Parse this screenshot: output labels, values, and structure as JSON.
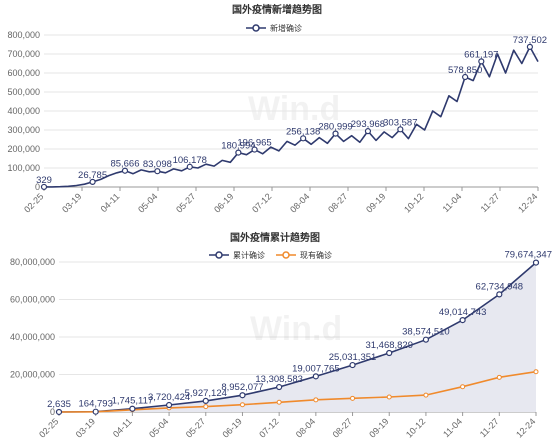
{
  "watermark": "Win.d",
  "colors": {
    "navy": "#2f3a6e",
    "orange": "#f08a2c",
    "area_fill": "#e7e8f0",
    "axis": "#999999",
    "grid": "#e6e6e6",
    "text": "#333333"
  },
  "chart_data": [
    {
      "type": "line",
      "title": "国外疫情新增趋势图",
      "legend": [
        "新增确诊"
      ],
      "legend_position": "top-center",
      "grid": true,
      "x_ticks": [
        "02-25",
        "03-19",
        "04-11",
        "05-04",
        "05-27",
        "06-19",
        "07-12",
        "08-04",
        "08-27",
        "09-19",
        "10-12",
        "11-04",
        "11-27",
        "12-24"
      ],
      "ylim": [
        0,
        800000
      ],
      "y_ticks": [
        "0",
        "100,000",
        "200,000",
        "300,000",
        "400,000",
        "500,000",
        "600,000",
        "700,000",
        "800,000"
      ],
      "series": [
        {
          "name": "新增确诊",
          "values": [
            329,
            600,
            1500,
            3500,
            8000,
            15000,
            26785,
            40000,
            60000,
            75000,
            85666,
            70000,
            90000,
            80000,
            83098,
            75000,
            95000,
            85000,
            106178,
            100000,
            120000,
            110000,
            140000,
            130000,
            180994,
            170000,
            196965,
            175000,
            210000,
            190000,
            240000,
            220000,
            256138,
            225000,
            260000,
            230000,
            280999,
            240000,
            270000,
            235000,
            293968,
            245000,
            290000,
            260000,
            303587,
            255000,
            330000,
            300000,
            400000,
            370000,
            480000,
            450000,
            578850,
            560000,
            661197,
            580000,
            700000,
            600000,
            720000,
            650000,
            737502,
            660000
          ],
          "labels": [
            {
              "i": 0,
              "text": "329"
            },
            {
              "i": 6,
              "text": "26,785"
            },
            {
              "i": 10,
              "text": "85,666"
            },
            {
              "i": 14,
              "text": "83,098"
            },
            {
              "i": 18,
              "text": "106,178"
            },
            {
              "i": 24,
              "text": "180,994"
            },
            {
              "i": 26,
              "text": "196,965"
            },
            {
              "i": 32,
              "text": "256,138"
            },
            {
              "i": 36,
              "text": "280,999"
            },
            {
              "i": 40,
              "text": "293,968"
            },
            {
              "i": 44,
              "text": "303,587"
            },
            {
              "i": 52,
              "text": "578,850"
            },
            {
              "i": 54,
              "text": "661,197"
            },
            {
              "i": 60,
              "text": "737,502"
            }
          ]
        }
      ]
    },
    {
      "type": "area",
      "title": "国外疫情累计趋势图",
      "legend": [
        "累计确诊",
        "现有确诊"
      ],
      "legend_position": "top-center",
      "grid": true,
      "x_ticks": [
        "02-25",
        "03-19",
        "04-11",
        "05-04",
        "05-27",
        "06-19",
        "07-12",
        "08-04",
        "08-27",
        "09-19",
        "10-12",
        "11-04",
        "11-27",
        "12-24"
      ],
      "ylim": [
        0,
        80000000
      ],
      "y_ticks": [
        "0",
        "20,000,000",
        "40,000,000",
        "60,000,000",
        "80,000,000"
      ],
      "series": [
        {
          "name": "累计确诊",
          "values": [
            2635,
            164793,
            1745117,
            3720424,
            5927124,
            8952077,
            13308583,
            19007765,
            25031351,
            31468829,
            38574510,
            49014743,
            62734948,
            79674347
          ],
          "labels": [
            "2,635",
            "164,793",
            "1,745,117",
            "3,720,424",
            "5,927,124",
            "8,952,077",
            "13,308,583",
            "19,007,765",
            "25,031,351",
            "31,468,829",
            "38,574,510",
            "49,014,743",
            "62,734,948",
            "79,674,347"
          ]
        },
        {
          "name": "现有确诊",
          "values": [
            2000,
            120000,
            1200000,
            2200000,
            2900000,
            3900000,
            5200000,
            6500000,
            7300000,
            8000000,
            9000000,
            13500000,
            18500000,
            21500000
          ]
        }
      ]
    }
  ]
}
